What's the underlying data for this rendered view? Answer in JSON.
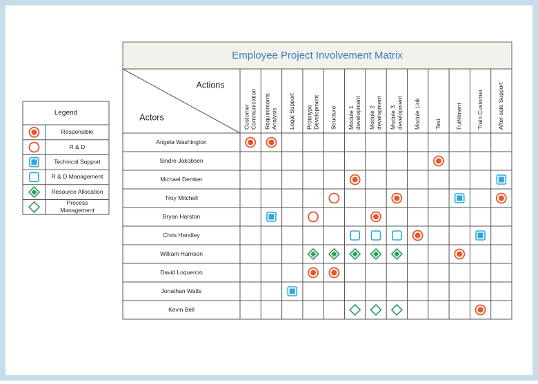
{
  "title": "Employee Project Involvement Matrix",
  "header": {
    "actions": "Actions",
    "actors": "Actors"
  },
  "legend": {
    "title": "Legend",
    "items": [
      {
        "symbol": "filled-circle",
        "label": [
          "Responsible"
        ]
      },
      {
        "symbol": "hollow-circle",
        "label": [
          "R & D"
        ]
      },
      {
        "symbol": "filled-square",
        "label": [
          "Technical Support"
        ]
      },
      {
        "symbol": "hollow-square",
        "label": [
          "R & D Management"
        ]
      },
      {
        "symbol": "filled-diamond",
        "label": [
          "Resource Allocation"
        ]
      },
      {
        "symbol": "hollow-diamond",
        "label": [
          "Process",
          "Management"
        ]
      }
    ]
  },
  "columns": [
    [
      "Customer",
      "Communication"
    ],
    [
      "Requirements",
      "Analysis"
    ],
    [
      "Legal Support"
    ],
    [
      "Prototype",
      "Development"
    ],
    [
      "Structure"
    ],
    [
      "Module 1",
      "development"
    ],
    [
      "Module 2",
      "development"
    ],
    [
      "Module 3",
      "development"
    ],
    [
      "Module Link"
    ],
    [
      "Test"
    ],
    [
      "Fulfillment"
    ],
    [
      "Train Customer"
    ],
    [
      "After-sale Support"
    ]
  ],
  "rows": [
    {
      "actor": "Angela Washington",
      "marks": [
        0,
        0,
        null,
        null,
        null,
        null,
        null,
        null,
        null,
        null,
        null,
        null,
        null
      ]
    },
    {
      "actor": "Sindre Jakobsen",
      "marks": [
        null,
        null,
        null,
        null,
        null,
        null,
        null,
        null,
        null,
        0,
        null,
        null,
        null
      ]
    },
    {
      "actor": "Michael Demker",
      "marks": [
        null,
        null,
        null,
        null,
        null,
        0,
        null,
        null,
        null,
        null,
        null,
        null,
        2
      ]
    },
    {
      "actor": "Troy Mitchell",
      "marks": [
        null,
        null,
        null,
        null,
        1,
        null,
        null,
        0,
        null,
        null,
        2,
        null,
        0
      ]
    },
    {
      "actor": "Bryan Harston",
      "marks": [
        null,
        2,
        null,
        1,
        null,
        null,
        0,
        null,
        null,
        null,
        null,
        null,
        null
      ]
    },
    {
      "actor": "Chris Hendley",
      "marks": [
        null,
        null,
        null,
        null,
        null,
        3,
        3,
        3,
        0,
        null,
        null,
        2,
        null
      ]
    },
    {
      "actor": "William Harrison",
      "marks": [
        null,
        null,
        null,
        4,
        4,
        4,
        4,
        4,
        null,
        null,
        0,
        null,
        null
      ]
    },
    {
      "actor": "David Loquercio",
      "marks": [
        null,
        null,
        null,
        0,
        0,
        null,
        null,
        null,
        null,
        null,
        null,
        null,
        null
      ]
    },
    {
      "actor": "Jonathan Watts",
      "marks": [
        null,
        null,
        2,
        null,
        null,
        null,
        null,
        null,
        null,
        null,
        null,
        null,
        null
      ]
    },
    {
      "actor": "Kevin Bell",
      "marks": [
        null,
        null,
        null,
        null,
        null,
        5,
        5,
        5,
        null,
        null,
        null,
        0,
        null
      ]
    }
  ]
}
